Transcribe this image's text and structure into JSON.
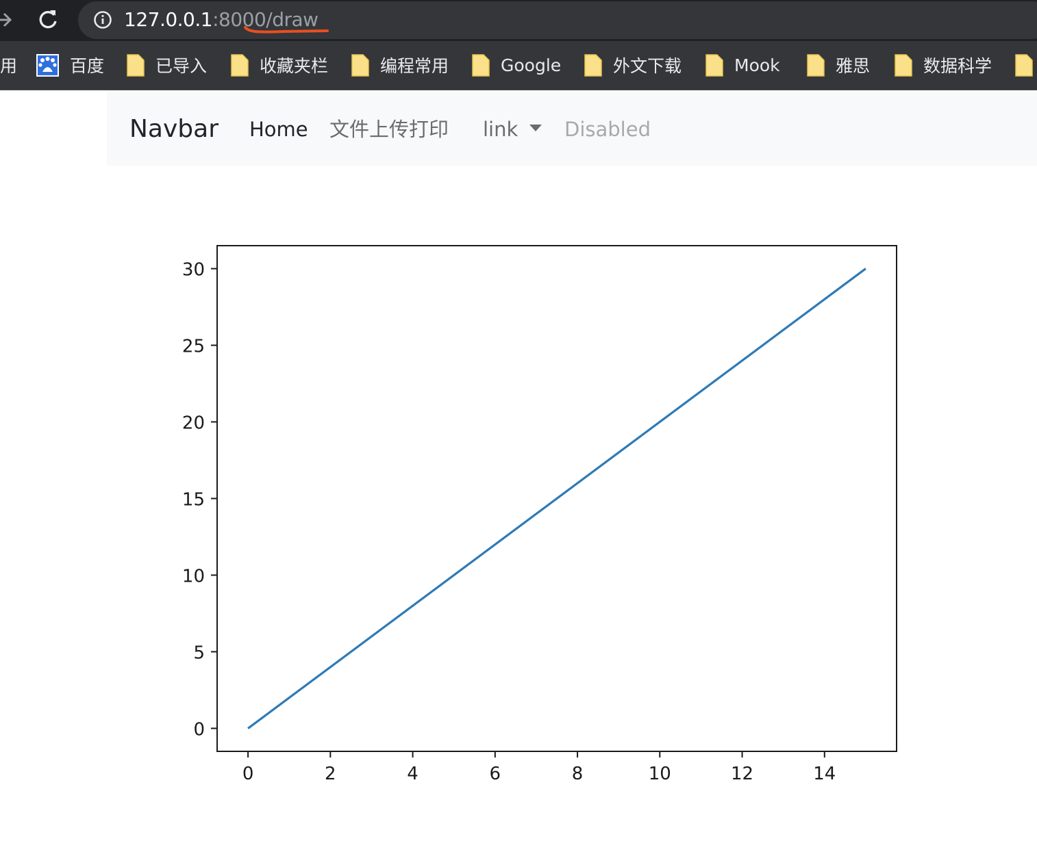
{
  "browser": {
    "url_host": "127.0.0.1",
    "url_rest": ":8000/draw",
    "annotation_color": "#e8501f"
  },
  "bookmarks": [
    {
      "label": "用",
      "icon": "folder-icon"
    },
    {
      "label": "百度",
      "icon": "baidu-logo-icon"
    },
    {
      "label": "已导入",
      "icon": "folder-icon"
    },
    {
      "label": "收藏夹栏",
      "icon": "folder-icon"
    },
    {
      "label": "编程常用",
      "icon": "folder-icon"
    },
    {
      "label": "Google",
      "icon": "folder-icon"
    },
    {
      "label": "外文下载",
      "icon": "folder-icon"
    },
    {
      "label": "Mook",
      "icon": "folder-icon"
    },
    {
      "label": "雅思",
      "icon": "folder-icon"
    },
    {
      "label": "数据科学",
      "icon": "folder-icon"
    }
  ],
  "navbar": {
    "brand": "Navbar",
    "items": [
      {
        "label": "Home"
      },
      {
        "label": "文件上传打印"
      },
      {
        "label": "link"
      },
      {
        "label": "Disabled"
      }
    ]
  },
  "chart_data": {
    "type": "line",
    "series": [
      {
        "x": [
          0,
          15
        ],
        "y": [
          0,
          30
        ],
        "color": "#2e7ab6"
      }
    ],
    "xlim": [
      -0.75,
      15.75
    ],
    "ylim": [
      -1.5,
      31.5
    ],
    "xticks": [
      0,
      2,
      4,
      6,
      8,
      10,
      12,
      14
    ],
    "yticks": [
      0,
      5,
      10,
      15,
      20,
      25,
      30
    ],
    "grid": false
  }
}
